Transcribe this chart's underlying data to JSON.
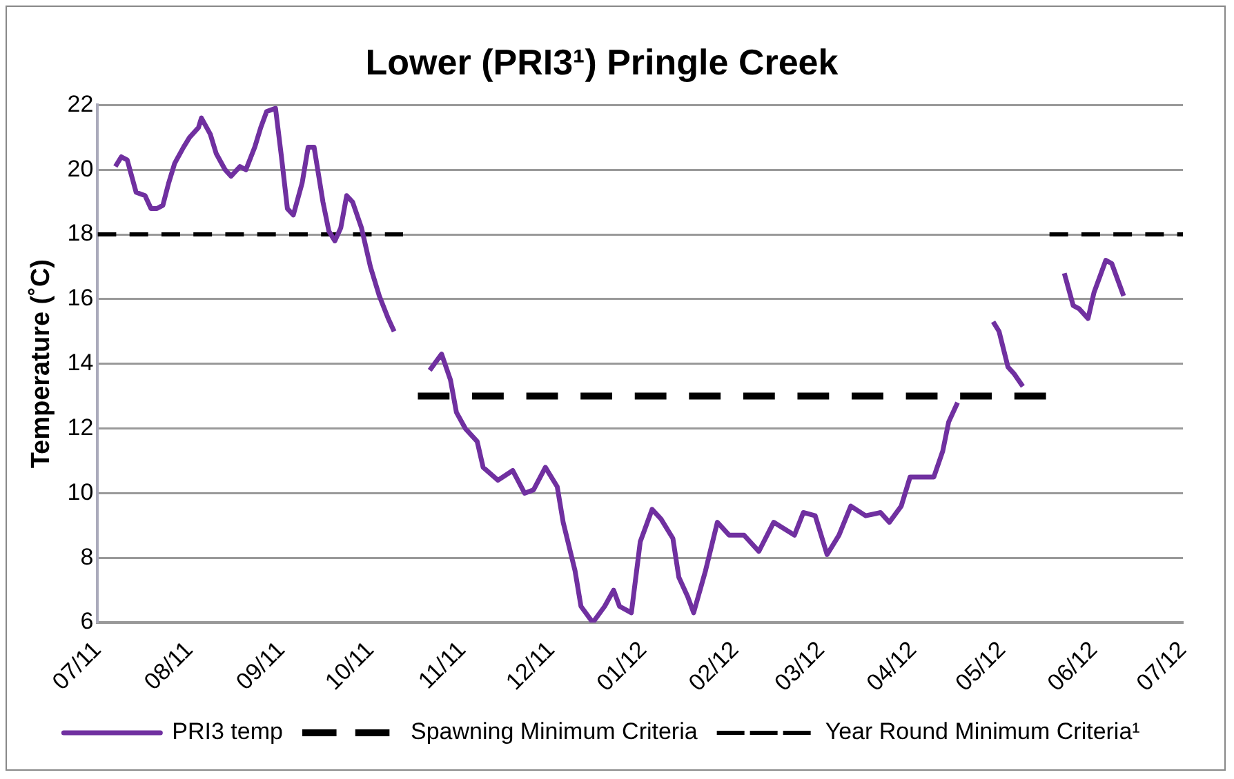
{
  "chart_data": {
    "type": "line",
    "title": "Lower (PRI3¹) Pringle Creek",
    "ylabel": "Temperature (˚C)",
    "xlim": [
      "2011-07-01",
      "2012-07-01"
    ],
    "xticks": [
      {
        "value": "2011-07-01",
        "label": "07/11"
      },
      {
        "value": "2011-08-01",
        "label": "08/11"
      },
      {
        "value": "2011-09-01",
        "label": "09/11"
      },
      {
        "value": "2011-10-01",
        "label": "10/11"
      },
      {
        "value": "2011-11-01",
        "label": "11/11"
      },
      {
        "value": "2011-12-01",
        "label": "12/11"
      },
      {
        "value": "2012-01-01",
        "label": "01/12"
      },
      {
        "value": "2012-02-01",
        "label": "02/12"
      },
      {
        "value": "2012-03-01",
        "label": "03/12"
      },
      {
        "value": "2012-04-01",
        "label": "04/12"
      },
      {
        "value": "2012-05-01",
        "label": "05/12"
      },
      {
        "value": "2012-06-01",
        "label": "06/12"
      },
      {
        "value": "2012-07-01",
        "label": "07/12"
      }
    ],
    "ylim": [
      6,
      22
    ],
    "yticks": [
      6,
      8,
      10,
      12,
      14,
      16,
      18,
      20,
      22
    ],
    "grid": "y",
    "legend": "bottom",
    "marker": "none",
    "series": [
      {
        "name": "PRI3 temp",
        "color": "#7030a0",
        "line_style": "solid",
        "x": [
          "2011-07-07",
          "2011-07-09",
          "2011-07-11",
          "2011-07-14",
          "2011-07-17",
          "2011-07-19",
          "2011-07-21",
          "2011-07-23",
          "2011-07-25",
          "2011-07-27",
          "2011-07-30",
          "2011-08-01",
          "2011-08-04",
          "2011-08-05",
          "2011-08-08",
          "2011-08-10",
          "2011-08-13",
          "2011-08-15",
          "2011-08-18",
          "2011-08-20",
          "2011-08-23",
          "2011-08-25",
          "2011-08-27",
          "2011-08-30",
          "2011-09-01",
          "2011-09-03",
          "2011-09-05",
          "2011-09-08",
          "2011-09-10",
          "2011-09-12",
          "2011-09-15",
          "2011-09-17",
          "2011-09-19",
          "2011-09-21",
          "2011-09-23",
          "2011-09-25",
          "2011-09-28",
          "2011-10-01",
          "2011-10-04",
          "2011-10-07",
          "2011-10-09",
          "2011-10-13",
          "2011-10-21",
          "2011-10-25",
          "2011-10-28",
          "2011-10-30",
          "2011-11-02",
          "2011-11-06",
          "2011-11-08",
          "2011-11-13",
          "2011-11-18",
          "2011-11-22",
          "2011-11-25",
          "2011-11-29",
          "2011-12-03",
          "2011-12-05",
          "2011-12-09",
          "2011-12-11",
          "2011-12-15",
          "2011-12-19",
          "2011-12-22",
          "2011-12-24",
          "2011-12-28",
          "2011-12-31",
          "2012-01-04",
          "2012-01-07",
          "2012-01-11",
          "2012-01-13",
          "2012-01-16",
          "2012-01-18",
          "2012-01-22",
          "2012-01-26",
          "2012-01-30",
          "2012-02-04",
          "2012-02-09",
          "2012-02-14",
          "2012-02-21",
          "2012-02-24",
          "2012-02-28",
          "2012-03-03",
          "2012-03-07",
          "2012-03-11",
          "2012-03-16",
          "2012-03-21",
          "2012-03-24",
          "2012-03-28",
          "2012-03-31",
          "2012-04-04",
          "2012-04-08",
          "2012-04-11",
          "2012-04-13",
          "2012-04-16",
          "2012-04-25",
          "2012-04-28",
          "2012-04-30",
          "2012-05-03",
          "2012-05-05",
          "2012-05-08",
          "2012-05-15",
          "2012-05-22",
          "2012-05-25",
          "2012-05-27",
          "2012-05-30",
          "2012-06-01",
          "2012-06-05",
          "2012-06-07",
          "2012-06-11"
        ],
        "values": [
          20.1,
          20.4,
          20.3,
          19.3,
          19.2,
          18.8,
          18.8,
          18.9,
          19.6,
          20.2,
          20.7,
          21.0,
          21.3,
          21.6,
          21.1,
          20.5,
          20.0,
          19.8,
          20.1,
          20.0,
          20.7,
          21.3,
          21.8,
          21.9,
          20.4,
          18.8,
          18.6,
          19.6,
          20.7,
          20.7,
          19.0,
          18.1,
          17.8,
          18.2,
          19.2,
          19.0,
          18.2,
          17.0,
          16.1,
          15.4,
          15.0,
          null,
          13.8,
          14.3,
          13.5,
          12.5,
          12.0,
          11.6,
          10.8,
          10.4,
          10.7,
          10.0,
          10.1,
          10.8,
          10.2,
          9.1,
          7.6,
          6.5,
          6.0,
          6.5,
          7.0,
          6.5,
          6.3,
          8.5,
          9.5,
          9.2,
          8.6,
          7.4,
          6.8,
          6.3,
          7.6,
          9.1,
          8.7,
          8.7,
          8.2,
          9.1,
          8.7,
          9.4,
          9.3,
          8.1,
          8.7,
          9.6,
          9.3,
          9.4,
          9.1,
          9.6,
          10.5,
          10.5,
          10.5,
          11.3,
          12.2,
          12.8,
          null,
          15.3,
          15.0,
          13.9,
          13.7,
          13.3,
          null,
          16.8,
          15.8,
          15.7,
          15.4,
          16.2,
          17.2,
          17.1,
          16.1
        ]
      },
      {
        "name": "Spawning Minimum Criteria",
        "color": "#000000",
        "line_style": "dashed",
        "x": [
          "2011-10-17",
          "2012-05-16"
        ],
        "values": [
          13,
          13
        ]
      },
      {
        "name": "Year Round Minimum Criteria¹",
        "color": "#000000",
        "line_style": "dashed",
        "x": [
          "2011-07-01",
          "2011-10-12",
          "2011-10-13",
          "2012-05-17",
          "2012-07-01"
        ],
        "values": [
          18,
          18,
          null,
          18,
          18
        ]
      }
    ]
  }
}
